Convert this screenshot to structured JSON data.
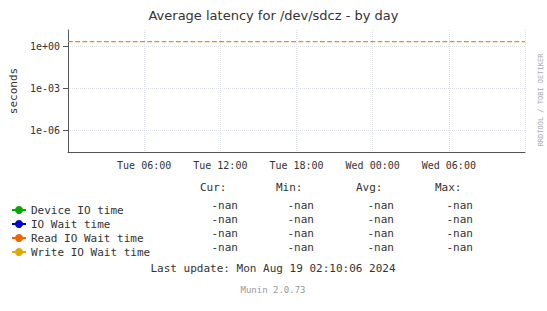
{
  "chart_data": {
    "type": "line",
    "title": "Average latency for /dev/sdcz - by day",
    "ylabel": "seconds",
    "categories": [
      null,
      "Tue 06:00",
      "Tue 12:00",
      "Tue 18:00",
      "Wed 00:00",
      "Wed 06:00",
      null
    ],
    "log": "y",
    "ylim": [
      3e-08,
      15
    ],
    "yticks": [
      {
        "value": 1e-06,
        "label": "1e-06"
      },
      {
        "value": 0.001,
        "label": "1e-03"
      },
      {
        "value": 1,
        "label": "1e+00"
      }
    ],
    "grid": true,
    "legend": "bottom left",
    "stats_headers": [
      "Cur:",
      "Min:",
      "Avg:",
      "Max:"
    ],
    "series": [
      {
        "name": "Device IO time",
        "color": "#00aa00",
        "values": [
          null,
          null,
          null,
          null,
          null,
          null,
          null
        ],
        "stats": [
          "-nan",
          "-nan",
          "-nan",
          "-nan"
        ]
      },
      {
        "name": "IO Wait time",
        "color": "#0000cc",
        "values": [
          null,
          null,
          null,
          null,
          null,
          null,
          null
        ],
        "stats": [
          "-nan",
          "-nan",
          "-nan",
          "-nan"
        ]
      },
      {
        "name": "Read IO Wait time",
        "color": "#ee6600",
        "values": [
          null,
          null,
          null,
          null,
          null,
          null,
          null
        ],
        "stats": [
          "-nan",
          "-nan",
          "-nan",
          "-nan"
        ]
      },
      {
        "name": "Write IO Wait time",
        "color": "#ddaa00",
        "values": [
          null,
          null,
          null,
          null,
          null,
          null,
          null
        ],
        "stats": [
          "-nan",
          "-nan",
          "-nan",
          "-nan"
        ]
      },
      {
        "color": "#ff8800",
        "line_style": "dashed",
        "values": [
          2.2,
          2.2,
          2.2,
          2.2,
          2.2,
          2.2,
          2.2
        ]
      }
    ],
    "annotations": [
      "Last update: Mon Aug 19 02:10:06 2024",
      "Munin 2.0.73",
      "RRDTOOL / TOBI OETIKER"
    ]
  }
}
